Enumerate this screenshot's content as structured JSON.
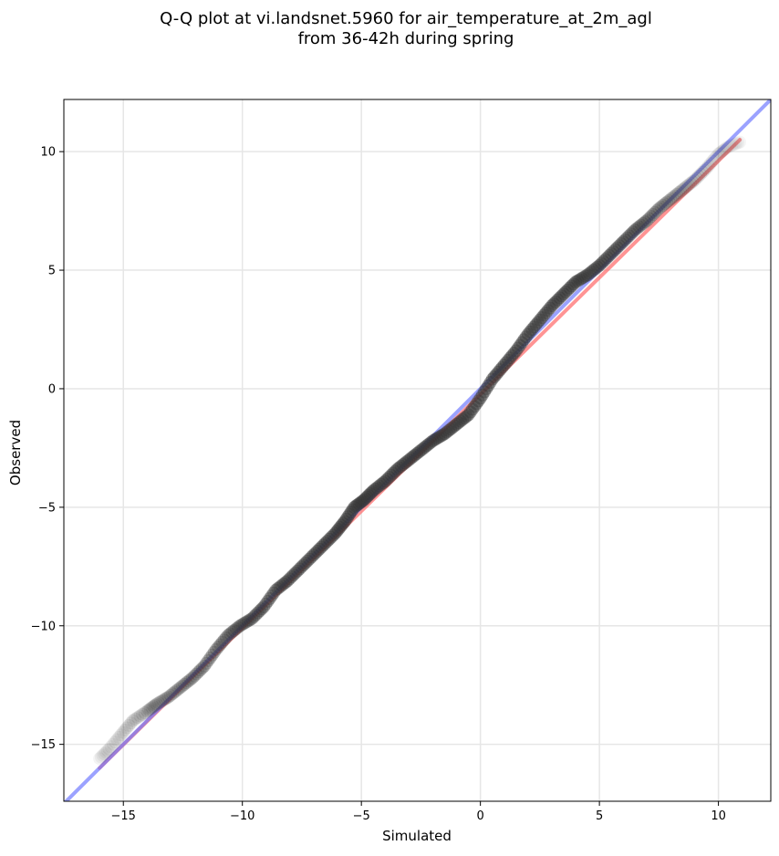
{
  "chart_data": {
    "type": "scatter",
    "title_lines": [
      "Q-Q plot at vi.landsnet.5960 for air_temperature_at_2m_agl",
      "from 36-42h during spring"
    ],
    "xlabel": "Simulated",
    "ylabel": "Observed",
    "xlim": [
      -17.5,
      12.2
    ],
    "ylim": [
      -17.4,
      12.2
    ],
    "xticks": [
      -15,
      -10,
      -5,
      0,
      5,
      10
    ],
    "yticks": [
      -15,
      -10,
      -5,
      0,
      5,
      10
    ],
    "xtick_labels": [
      "−15",
      "−10",
      "−5",
      "0",
      "5",
      "10"
    ],
    "ytick_labels": [
      "−15",
      "−10",
      "−5",
      "0",
      "5",
      "10"
    ],
    "grid": true,
    "colors": {
      "points": "#333333",
      "fit_line": "#ff6666",
      "identity_line": "#6670ff",
      "grid": "#e6e6e6"
    },
    "series": [
      {
        "kind": "quantile_points",
        "x": [
          -16.0,
          -15.6,
          -15.1,
          -14.6,
          -14.0,
          -13.6,
          -13.1,
          -12.6,
          -12.1,
          -11.6,
          -11.1,
          -10.6,
          -10.1,
          -9.6,
          -9.1,
          -8.6,
          -8.1,
          -7.6,
          -7.1,
          -6.6,
          -6.1,
          -5.7,
          -5.3,
          -4.9,
          -4.5,
          -4.0,
          -3.5,
          -3.0,
          -2.5,
          -2.0,
          -1.5,
          -1.0,
          -0.5,
          0.0,
          0.5,
          1.0,
          1.5,
          2.0,
          2.5,
          3.0,
          3.5,
          4.0,
          4.5,
          5.0,
          5.5,
          6.0,
          6.5,
          7.0,
          7.5,
          8.0,
          8.5,
          9.0,
          9.5,
          10.0,
          10.4,
          10.9
        ],
        "y": [
          -15.6,
          -15.2,
          -14.6,
          -14.0,
          -13.6,
          -13.3,
          -13.0,
          -12.6,
          -12.2,
          -11.7,
          -11.0,
          -10.4,
          -10.0,
          -9.7,
          -9.2,
          -8.5,
          -8.1,
          -7.6,
          -7.1,
          -6.6,
          -6.1,
          -5.6,
          -5.0,
          -4.7,
          -4.3,
          -3.9,
          -3.4,
          -3.0,
          -2.6,
          -2.2,
          -1.9,
          -1.5,
          -1.1,
          -0.4,
          0.4,
          1.0,
          1.6,
          2.3,
          2.9,
          3.5,
          4.0,
          4.5,
          4.8,
          5.2,
          5.7,
          6.2,
          6.7,
          7.1,
          7.6,
          8.0,
          8.4,
          8.8,
          9.3,
          9.9,
          10.2,
          10.4
        ],
        "opacity": [
          0.12,
          0.15,
          0.2,
          0.25,
          0.35,
          0.4,
          0.45,
          0.5,
          0.55,
          0.6,
          0.65,
          0.7,
          0.75,
          0.8,
          0.85,
          0.85,
          0.9,
          0.9,
          0.9,
          0.95,
          0.95,
          0.95,
          0.95,
          0.95,
          0.95,
          0.95,
          0.95,
          0.95,
          0.95,
          0.95,
          0.95,
          0.95,
          0.95,
          0.95,
          0.95,
          0.95,
          0.95,
          0.95,
          0.95,
          0.95,
          0.95,
          0.95,
          0.9,
          0.9,
          0.85,
          0.8,
          0.75,
          0.65,
          0.55,
          0.45,
          0.35,
          0.25,
          0.2,
          0.15,
          0.12,
          0.1
        ]
      },
      {
        "kind": "fit_line",
        "x": [
          -16.0,
          10.9
        ],
        "y": [
          -16.0,
          10.5
        ]
      },
      {
        "kind": "identity_line",
        "x": [
          -17.5,
          12.2
        ],
        "y": [
          -17.5,
          12.2
        ]
      }
    ]
  }
}
